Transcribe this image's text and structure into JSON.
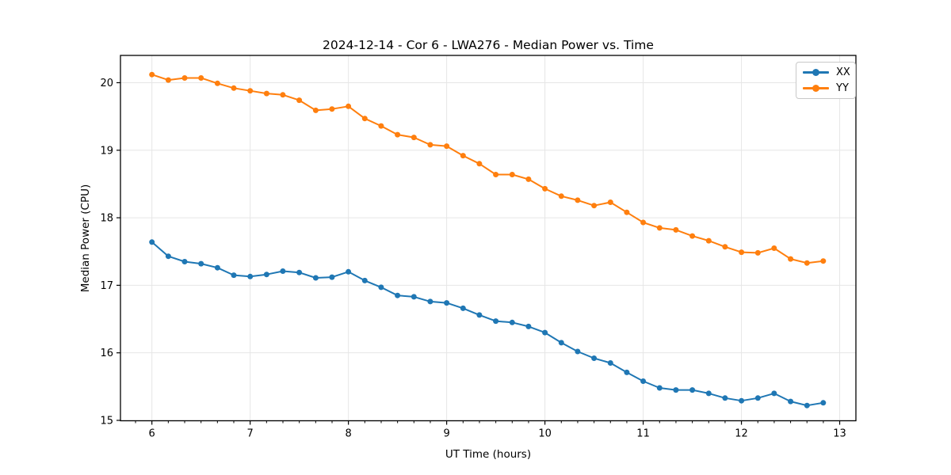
{
  "chart_data": {
    "type": "line",
    "title": "2024-12-14 - Cor 6 - LWA276 - Median Power vs. Time",
    "xlabel": "UT Time (hours)",
    "ylabel": "Median Power (CPU)",
    "xlim": [
      5.68,
      13.165
    ],
    "ylim": [
      14.994,
      20.404
    ],
    "x_ticks": [
      6,
      7,
      8,
      9,
      10,
      11,
      12,
      13
    ],
    "x_tick_labels": [
      "6",
      "7",
      "8",
      "9",
      "10",
      "11",
      "12",
      "13"
    ],
    "y_ticks": [
      15,
      16,
      17,
      18,
      19,
      20
    ],
    "y_tick_labels": [
      "15",
      "16",
      "17",
      "18",
      "19",
      "20"
    ],
    "x_minor_step": 0.16667,
    "grid": true,
    "legend_position": "upper right",
    "colors": {
      "grid": "#e6e6e6",
      "spine": "#000000",
      "text": "#000000"
    },
    "x": [
      6.0,
      6.167,
      6.333,
      6.5,
      6.667,
      6.833,
      7.0,
      7.167,
      7.333,
      7.5,
      7.667,
      7.833,
      8.0,
      8.167,
      8.333,
      8.5,
      8.667,
      8.833,
      9.0,
      9.167,
      9.333,
      9.5,
      9.667,
      9.833,
      10.0,
      10.167,
      10.333,
      10.5,
      10.667,
      10.833,
      11.0,
      11.167,
      11.333,
      11.5,
      11.667,
      11.833,
      12.0,
      12.167,
      12.333,
      12.5,
      12.667,
      12.833
    ],
    "series": [
      {
        "name": "XX",
        "color": "#1f77b4",
        "values": [
          17.64,
          17.43,
          17.35,
          17.32,
          17.26,
          17.15,
          17.13,
          17.16,
          17.21,
          17.19,
          17.11,
          17.12,
          17.2,
          17.07,
          16.97,
          16.85,
          16.83,
          16.76,
          16.74,
          16.66,
          16.56,
          16.47,
          16.45,
          16.39,
          16.3,
          16.15,
          16.02,
          15.92,
          15.85,
          15.71,
          15.58,
          15.48,
          15.45,
          15.45,
          15.4,
          15.33,
          15.29,
          15.33,
          15.4,
          15.28,
          15.22,
          15.26
        ]
      },
      {
        "name": "YY",
        "color": "#ff7f0e",
        "values": [
          20.12,
          20.04,
          20.07,
          20.07,
          19.99,
          19.92,
          19.88,
          19.84,
          19.82,
          19.74,
          19.59,
          19.61,
          19.65,
          19.47,
          19.36,
          19.23,
          19.19,
          19.08,
          19.06,
          18.92,
          18.8,
          18.64,
          18.64,
          18.57,
          18.43,
          18.32,
          18.26,
          18.18,
          18.23,
          18.08,
          17.93,
          17.85,
          17.82,
          17.73,
          17.66,
          17.57,
          17.49,
          17.48,
          17.55,
          17.39,
          17.33,
          17.36
        ]
      }
    ]
  }
}
